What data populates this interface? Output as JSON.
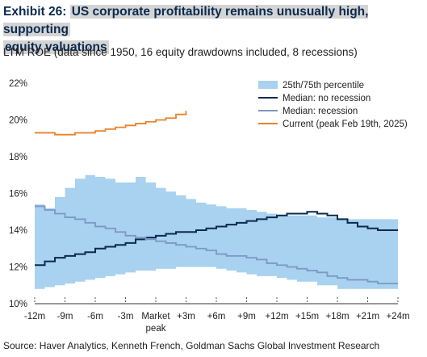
{
  "header": {
    "exhibit": "Exhibit 26:",
    "title_line1": "US corporate profitability remains unusually high, supporting",
    "title_line2": "equity valuations",
    "subtitle": "LTM ROE (data since 1950, 16 equity drawdowns included, 8 recessions)"
  },
  "source": "Source: Haver Analytics, Kenneth French, Goldman Sachs Global Investment Research",
  "colors": {
    "band": "#a8d2ef",
    "no_recession": "#0b2a4e",
    "recession": "#7e97c2",
    "current": "#e8822b"
  },
  "chart_data": {
    "type": "line",
    "ylim": [
      10,
      22
    ],
    "yticks": [
      "10%",
      "12%",
      "14%",
      "16%",
      "18%",
      "20%",
      "22%"
    ],
    "xlim": [
      -12,
      24
    ],
    "xticks": [
      {
        "x": -12,
        "label": "-12m"
      },
      {
        "x": -9,
        "label": "-9m"
      },
      {
        "x": -6,
        "label": "-6m"
      },
      {
        "x": -3,
        "label": "-3m"
      },
      {
        "x": 0,
        "label": "Market",
        "label2": "peak"
      },
      {
        "x": 3,
        "label": "+3m"
      },
      {
        "x": 6,
        "label": "+6m"
      },
      {
        "x": 9,
        "label": "+9m"
      },
      {
        "x": 12,
        "label": "+12m"
      },
      {
        "x": 15,
        "label": "+15m"
      },
      {
        "x": 18,
        "label": "+18m"
      },
      {
        "x": 21,
        "label": "+21m"
      },
      {
        "x": 24,
        "label": "+24m"
      }
    ],
    "legend": {
      "position": "top-right",
      "entries": [
        "25th/75th percentile",
        "Median: no recession",
        "Median: recession",
        "Current (peak Feb 19th, 2025)"
      ]
    },
    "band": {
      "name": "25th/75th percentile",
      "x": [
        -12,
        -11,
        -10,
        -9,
        -8,
        -7,
        -6,
        -5,
        -4,
        -3,
        -2,
        -1,
        0,
        1,
        2,
        3,
        4,
        5,
        6,
        7,
        8,
        9,
        10,
        11,
        12,
        13,
        14,
        15,
        16,
        17,
        18,
        19,
        20,
        21,
        22,
        23,
        24
      ],
      "upper": [
        15.4,
        15.2,
        15.8,
        16.3,
        16.8,
        17.0,
        16.9,
        16.8,
        16.6,
        16.6,
        16.9,
        16.6,
        16.3,
        16.1,
        15.9,
        15.7,
        15.5,
        15.4,
        15.3,
        15.2,
        15.2,
        15.1,
        15.0,
        14.9,
        14.8,
        14.8,
        14.8,
        14.8,
        14.7,
        14.7,
        14.6,
        14.6,
        14.6,
        14.6,
        14.6,
        14.6,
        14.6
      ],
      "lower": [
        10.8,
        10.9,
        11.0,
        11.1,
        11.2,
        11.3,
        11.4,
        11.5,
        11.6,
        11.7,
        11.8,
        11.8,
        11.9,
        11.9,
        12.0,
        12.0,
        12.0,
        12.0,
        11.9,
        11.8,
        11.7,
        11.6,
        11.5,
        11.5,
        11.4,
        11.3,
        11.2,
        11.2,
        11.0,
        11.0,
        10.8,
        10.8,
        10.8,
        10.8,
        10.8,
        10.8,
        10.8
      ]
    },
    "series": [
      {
        "name": "Median: no recession",
        "x": [
          -12,
          -11,
          -10,
          -9,
          -8,
          -7,
          -6,
          -5,
          -4,
          -3,
          -2,
          -1,
          0,
          1,
          2,
          3,
          4,
          5,
          6,
          7,
          8,
          9,
          10,
          11,
          12,
          13,
          14,
          15,
          16,
          17,
          18,
          19,
          20,
          21,
          22,
          23,
          24
        ],
        "values": [
          12.1,
          12.3,
          12.5,
          12.6,
          12.7,
          12.8,
          13.0,
          13.1,
          13.2,
          13.3,
          13.5,
          13.6,
          13.7,
          13.8,
          13.9,
          13.9,
          14.0,
          14.1,
          14.2,
          14.3,
          14.4,
          14.5,
          14.6,
          14.7,
          14.8,
          14.9,
          14.9,
          15.0,
          14.9,
          14.8,
          14.6,
          14.4,
          14.2,
          14.1,
          14.0,
          14.0,
          14.0
        ]
      },
      {
        "name": "Median: recession",
        "x": [
          -12,
          -11,
          -10,
          -9,
          -8,
          -7,
          -6,
          -5,
          -4,
          -3,
          -2,
          -1,
          0,
          1,
          2,
          3,
          4,
          5,
          6,
          7,
          8,
          9,
          10,
          11,
          12,
          13,
          14,
          15,
          16,
          17,
          18,
          19,
          20,
          21,
          22,
          23,
          24
        ],
        "values": [
          15.3,
          15.1,
          14.9,
          14.7,
          14.6,
          14.4,
          14.2,
          14.1,
          13.9,
          13.7,
          13.6,
          13.5,
          13.4,
          13.3,
          13.2,
          13.1,
          13.0,
          12.9,
          12.7,
          12.6,
          12.6,
          12.5,
          12.4,
          12.2,
          12.1,
          12.0,
          11.9,
          11.8,
          11.7,
          11.5,
          11.4,
          11.3,
          11.3,
          11.2,
          11.1,
          11.1,
          11.1
        ]
      },
      {
        "name": "Current (peak Feb 19th, 2025)",
        "x": [
          -12,
          -11,
          -10,
          -9,
          -8,
          -7,
          -6,
          -5,
          -4,
          -3,
          -2,
          -1,
          0,
          1,
          2,
          3
        ],
        "values": [
          19.3,
          19.3,
          19.2,
          19.2,
          19.3,
          19.3,
          19.4,
          19.5,
          19.6,
          19.7,
          19.8,
          19.9,
          20.0,
          20.1,
          20.3,
          20.5
        ]
      }
    ]
  }
}
